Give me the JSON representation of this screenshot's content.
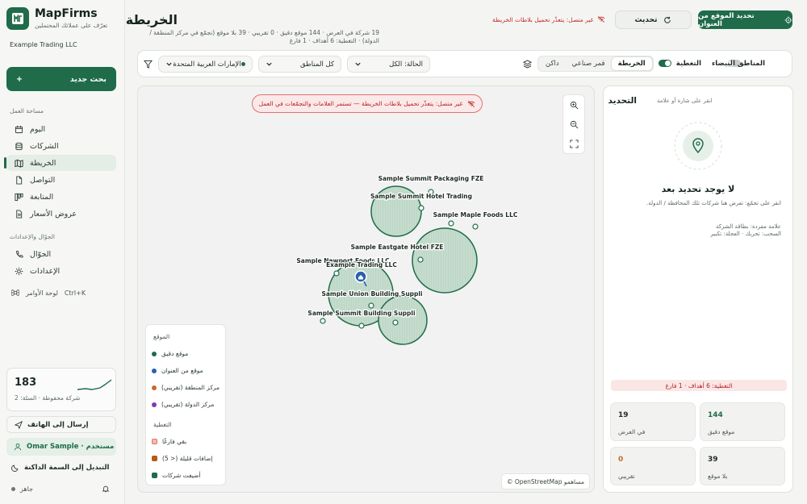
{
  "app": {
    "brand": "MapFirms",
    "tagline": "تعرّف على عملائك المحتملين",
    "company": "Example Trading LLC"
  },
  "sidebar": {
    "search_label": "بحث جديد",
    "workspace_title": "مساحة العمل",
    "items": [
      {
        "label": "اليوم"
      },
      {
        "label": "الشركات"
      },
      {
        "label": "الخريطة"
      },
      {
        "label": "التواصل"
      },
      {
        "label": "المتابعة"
      },
      {
        "label": "عروض الأسعار"
      }
    ],
    "mobile_title": "الجوّال والإعدادات",
    "mobile_items": [
      {
        "label": "الجوّال"
      },
      {
        "label": "الإعدادات"
      }
    ],
    "palette_label": "لوحة الأوامر",
    "palette_shortcut": "Ctrl+K",
    "stat_value": "183",
    "stat_sub": "شركة محفوظة · السلة: 2",
    "send_phone": "إرسال إلى الهاتف",
    "user": "Omar Sample · مستخدم",
    "theme": "التبديل إلى السمة الداكنة",
    "status": "جاهز"
  },
  "header": {
    "title": "الخريطة",
    "subtitle": "19 شركة في العرض · 144 موقع دقيق · 0 تقريبي · 39 بلا موقع (تجمّع في مركز المنطقة / الدولة) · التغطية: 6 أهداف · 1 فارغ",
    "offline": "غير متصل: يتعذّر تحميل بلاطات الخريطة",
    "refresh": "تحديث",
    "locate": "تحديد الموقع من العنوان"
  },
  "filters": {
    "white_zones": "المناطق البيضاء",
    "coverage": "التغطية",
    "basemaps": [
      "داكن",
      "قمر صناعي",
      "الخريطة"
    ],
    "basemap_active": "الخريطة",
    "status": "الحالة: الكل",
    "regions": "كل المناطق",
    "country": "الإمارات العربية المتحدة"
  },
  "map": {
    "banner": "غير متصل: يتعذّر تحميل بلاطات الخريطة — تستمر العلامات والتجمّعات في العمل",
    "labels": [
      "Sample Summit Packaging FZE",
      "Sample Summit Hotel Trading",
      "Sample Maple Foods LLC",
      "Sample Eastgate Hotel FZE",
      "Sample Newport Foods LLC",
      "Example Trading LLC",
      "Sample Union Building Suppli",
      "Sample Summit Building Suppli"
    ],
    "attribution": "© OpenStreetMap مساهمو",
    "legend": {
      "loc_title": "الموقع",
      "loc_items": [
        "موقع دقيق",
        "موقع من العنوان",
        "مركز المنطقة (تقريبي)",
        "مركز الدولة (تقريبي)"
      ],
      "cov_title": "التغطية",
      "cov_items": [
        "بقي فارغًا",
        "(5 >) إضافات قليلة",
        "أضيفت شركات"
      ],
      "colors": {
        "exact": "#1f6b4a",
        "address": "#2b5fb0",
        "region": "#c8692a",
        "country": "#7a3bb5",
        "empty": "#f4b7b0",
        "few": "#b35d12",
        "added": "#1f6b4a"
      }
    }
  },
  "panel": {
    "title": "التحديد",
    "hint": "انقر على شارة أو علامة",
    "empty_title": "لا يوجد تحديد بعد",
    "empty_text_1": "انقر على تجمّع: تعرض هنا شركات تلك المحافظة / الدولة.",
    "empty_text_2": "علامة مفردة: بطاقة الشركة",
    "empty_text_3": "السحب: تحريك · العجلة: تكبير",
    "coverage": "التغطية: 6 أهداف · 1 فارغ",
    "kpis": [
      {
        "value": "144",
        "label": "موقع دقيق"
      },
      {
        "value": "19",
        "label": "في العرض"
      },
      {
        "value": "39",
        "label": "بلا موقع"
      },
      {
        "value": "0",
        "label": "تقريبي"
      }
    ]
  }
}
